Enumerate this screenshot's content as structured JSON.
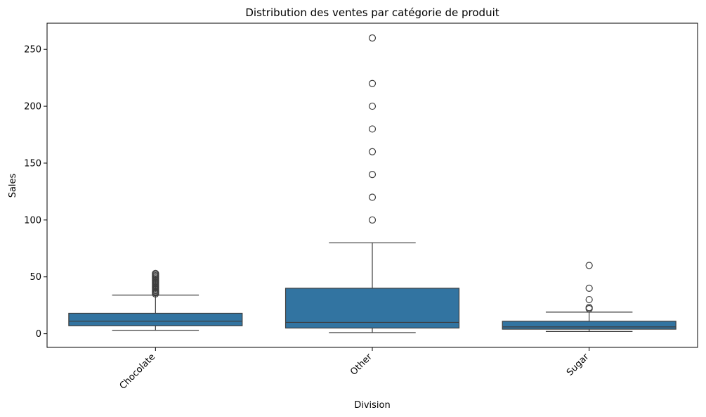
{
  "chart_data": {
    "type": "box",
    "title": "Distribution des ventes par catégorie de produit",
    "xlabel": "Division",
    "ylabel": "Sales",
    "ylim": [
      -12,
      273
    ],
    "yticks": [
      0,
      50,
      100,
      150,
      200,
      250
    ],
    "categories": [
      "Chocolate",
      "Other",
      "Sugar"
    ],
    "box_color": "#3274a1",
    "line_color": "#3d3d3d",
    "series": [
      {
        "category": "Chocolate",
        "whisker_low": 3,
        "q1": 7,
        "median": 11,
        "q3": 18,
        "whisker_high": 34,
        "outliers": [
          35,
          36,
          37,
          38,
          39,
          40,
          41,
          42,
          43,
          44,
          45,
          46,
          47,
          48,
          49,
          50,
          51,
          52,
          53
        ]
      },
      {
        "category": "Other",
        "whisker_low": 1,
        "q1": 5,
        "median": 10,
        "q3": 40,
        "whisker_high": 80,
        "outliers": [
          100,
          120,
          140,
          160,
          180,
          200,
          220,
          260
        ]
      },
      {
        "category": "Sugar",
        "whisker_low": 2,
        "q1": 4,
        "median": 6,
        "q3": 11,
        "whisker_high": 19,
        "outliers": [
          22,
          23,
          30,
          40,
          60
        ]
      }
    ]
  }
}
